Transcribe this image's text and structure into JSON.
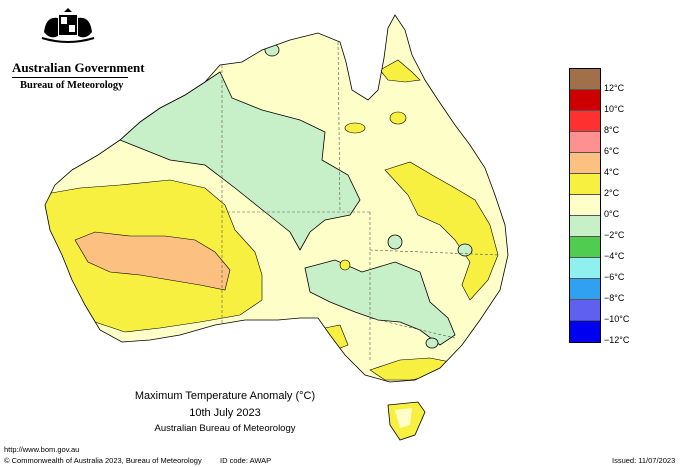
{
  "header": {
    "government": "Australian Government",
    "agency": "Bureau of Meteorology"
  },
  "map": {
    "title": "Maximum Temperature Anomaly (°C)",
    "date": "10th July 2023",
    "source": "Australian Bureau of Meteorology"
  },
  "footer": {
    "url": "http://www.bom.gov.au",
    "copyright": "© Commonwealth of Australia 2023, Bureau of Meteorology",
    "id_code": "ID code: AWAP",
    "issued": "Issued: 11/07/2023"
  },
  "legend": {
    "labels": [
      "12°C",
      "10°C",
      "8°C",
      "6°C",
      "4°C",
      "2°C",
      "0°C",
      "−2°C",
      "−4°C",
      "−6°C",
      "−8°C",
      "−10°C",
      "−12°C"
    ],
    "colors": [
      "#a0704a",
      "#cc0000",
      "#ff3030",
      "#ff9090",
      "#fcc080",
      "#f8f040",
      "#fefec8",
      "#c8f0c8",
      "#50cc50",
      "#90f0f0",
      "#30a0f0",
      "#6060f0",
      "#0000f0"
    ]
  },
  "colors": {
    "above_0_2": "#fefec8",
    "above_2_4": "#f8f040",
    "above_4_6": "#fcc080",
    "below_0_2": "#c8f0c8"
  }
}
